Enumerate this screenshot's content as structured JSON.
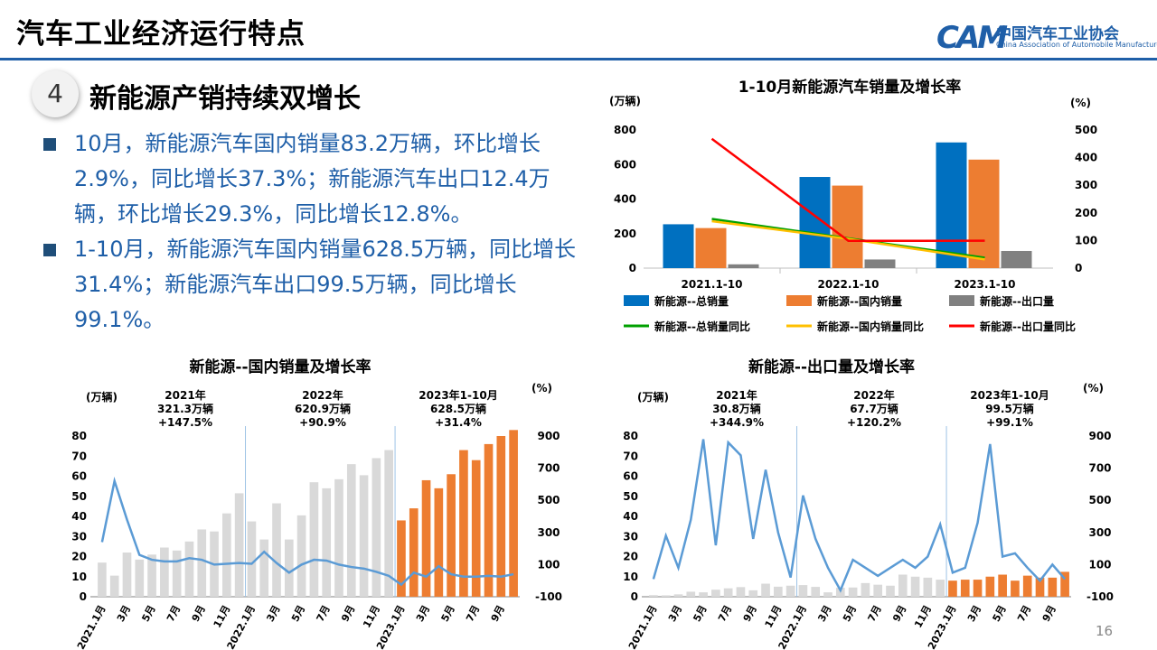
{
  "header": {
    "title": "汽车工业经济运行特点",
    "logo_mark": "CAM",
    "logo_cn": "中国汽车工业协会",
    "logo_en": "China Association of Automobile Manufacturers",
    "rule_color": "#1f5fa8"
  },
  "section": {
    "number": "4",
    "title": "新能源产销持续双增长"
  },
  "bullets": [
    {
      "text": "10月，新能源汽车国内销量83.2万辆，环比增长2.9%，同比增长37.3%；新能源汽车出口12.4万辆，环比增长29.3%，同比增长12.8%。"
    },
    {
      "text": "1-10月，新能源汽车国内销量628.5万辆，同比增长31.4%；新能源汽车出口99.5万辆，同比增长99.1%。"
    }
  ],
  "page_number": "16",
  "chart_data": [
    {
      "type": "bar",
      "title": "1-10月新能源汽车销量及增长率",
      "ylabel_left": "(万辆)",
      "ylabel_right": "(%)",
      "ylim_left": [
        0,
        800
      ],
      "ylim_right": [
        0,
        500
      ],
      "yticks_left": [
        "0",
        "200",
        "400",
        "600",
        "800"
      ],
      "yticks_right": [
        "0",
        "100",
        "200",
        "300",
        "400",
        "500"
      ],
      "categories": [
        "2021.1-10",
        "2022.1-10",
        "2023.1-10"
      ],
      "bar_series": [
        {
          "name": "新能源--总销量",
          "color": "#0070c0",
          "values": [
            254,
            528,
            728
          ]
        },
        {
          "name": "新能源--国内销量",
          "color": "#ed7d31",
          "values": [
            232,
            478,
            628.5
          ]
        },
        {
          "name": "新能源--出口量",
          "color": "#808080",
          "values": [
            22,
            50,
            99.5
          ]
        }
      ],
      "line_series": [
        {
          "name": "新能源--总销量同比",
          "color": "#00a000",
          "values": [
            178,
            108,
            37.8
          ]
        },
        {
          "name": "新能源--国内销量同比",
          "color": "#ffc000",
          "values": [
            170,
            106,
            31.4
          ]
        },
        {
          "name": "新能源--出口量同比",
          "color": "#ff0000",
          "values": [
            468,
            99,
            99.1
          ]
        }
      ],
      "legend": "bottom"
    },
    {
      "type": "bar",
      "title": "新能源--国内销量及增长率",
      "ylabel_left": "(万辆)",
      "ylabel_right": "(%)",
      "ylim_left": [
        0,
        80
      ],
      "ylim_right": [
        -100,
        900
      ],
      "yticks_left": [
        "0",
        "10",
        "20",
        "30",
        "40",
        "50",
        "60",
        "70",
        "80"
      ],
      "yticks_right": [
        "-100",
        "100",
        "300",
        "500",
        "700",
        "900"
      ],
      "x_tick_labels": [
        "2021.1月",
        "3月",
        "5月",
        "7月",
        "9月",
        "11月",
        "2022.1月",
        "3月",
        "5月",
        "7月",
        "9月",
        "11月",
        "2023.1月",
        "3月",
        "5月",
        "7月",
        "9月"
      ],
      "annotations": [
        {
          "year": "2021年",
          "total": "321.3万辆",
          "growth": "+147.5%"
        },
        {
          "year": "2022年",
          "total": "620.9万辆",
          "growth": "+90.9%"
        },
        {
          "year": "2023年1-10月",
          "total": "628.5万辆",
          "growth": "+31.4%"
        }
      ],
      "bar_values": [
        17,
        10.5,
        22,
        18.5,
        21,
        24.5,
        23,
        27.5,
        33.5,
        32.5,
        41.5,
        51.5,
        37.5,
        28.5,
        46.5,
        28.5,
        40.5,
        57,
        54,
        58.5,
        66,
        60.5,
        69,
        73,
        38,
        44,
        58,
        54,
        61,
        73,
        68,
        76,
        80,
        83
      ],
      "bar_colors": [
        "#d9d9d9",
        "#ed7d31"
      ],
      "line_color": "#5b9bd5",
      "growth_values": [
        240,
        620,
        380,
        160,
        130,
        120,
        120,
        140,
        130,
        100,
        105,
        110,
        105,
        180,
        110,
        50,
        100,
        130,
        125,
        100,
        85,
        75,
        55,
        30,
        -25,
        50,
        25,
        90,
        40,
        25,
        25,
        30,
        25,
        40
      ]
    },
    {
      "type": "bar",
      "title": "新能源--出口量及增长率",
      "ylabel_left": "(万辆)",
      "ylabel_right": "(%)",
      "ylim_left": [
        0,
        80
      ],
      "ylim_right": [
        -100,
        900
      ],
      "yticks_left": [
        "0",
        "10",
        "20",
        "30",
        "40",
        "50",
        "60",
        "70",
        "80"
      ],
      "yticks_right": [
        "-100",
        "100",
        "300",
        "500",
        "700",
        "900"
      ],
      "x_tick_labels": [
        "2021.1月",
        "3月",
        "5月",
        "7月",
        "9月",
        "11月",
        "2022.1月",
        "3月",
        "5月",
        "7月",
        "9月",
        "11月",
        "2023.1月",
        "3月",
        "5月",
        "7月",
        "9月"
      ],
      "annotations": [
        {
          "year": "2021年",
          "total": "30.8万辆",
          "growth": "+344.9%"
        },
        {
          "year": "2022年",
          "total": "67.7万辆",
          "growth": "+120.2%"
        },
        {
          "year": "2023年1-10月",
          "total": "99.5万辆",
          "growth": "+99.1%"
        }
      ],
      "bar_values": [
        0.8,
        0.7,
        1.2,
        2.5,
        2.2,
        3.5,
        4.2,
        4.8,
        3.2,
        6.5,
        5.0,
        5.5,
        5.8,
        4.9,
        2.2,
        4.5,
        4.6,
        6.8,
        6.0,
        5.5,
        11,
        10,
        9.5,
        8.5,
        8,
        8.5,
        8.5,
        10,
        11,
        8,
        10.5,
        9.5,
        9.5,
        12.4
      ],
      "bar_colors": [
        "#d9d9d9",
        "#ed7d31"
      ],
      "line_color": "#5b9bd5",
      "growth_values": [
        10,
        280,
        80,
        380,
        880,
        220,
        860,
        780,
        260,
        690,
        300,
        20,
        530,
        260,
        80,
        -60,
        130,
        80,
        30,
        80,
        130,
        80,
        150,
        350,
        50,
        80,
        360,
        850,
        150,
        170,
        80,
        0,
        100,
        10
      ]
    }
  ]
}
